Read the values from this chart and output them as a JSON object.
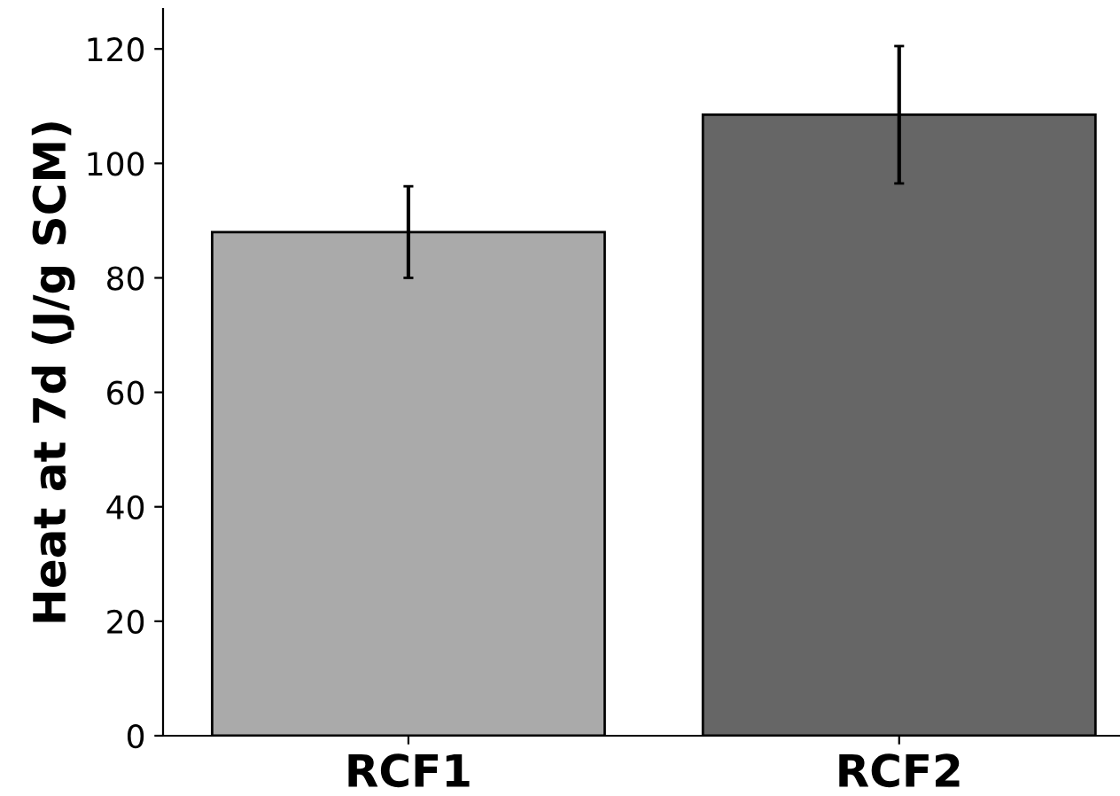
{
  "chart_data": {
    "type": "bar",
    "ylabel": "Heat at 7d (J/g SCM)",
    "categories": [
      "RCF1",
      "RCF2"
    ],
    "values": [
      88,
      108.5
    ],
    "colors": [
      "#aaaaaa",
      "#666666"
    ],
    "errors": [
      8,
      12
    ],
    "ylim": [
      0,
      127
    ],
    "yticks": [
      0,
      20,
      40,
      60,
      80,
      100,
      120
    ],
    "grid": false,
    "legend": false
  }
}
